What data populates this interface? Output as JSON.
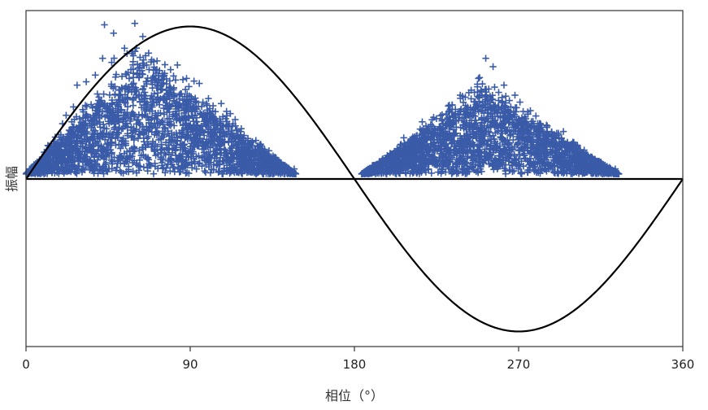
{
  "chart_data": {
    "type": "scatter",
    "title": "",
    "xlabel": "相位（°）",
    "ylabel": "振幅",
    "xlim": [
      0,
      360
    ],
    "ylim": [
      -1.0,
      1.0
    ],
    "x_ticks": [
      "0",
      "90",
      "180",
      "270",
      "360"
    ],
    "x_tick_values": [
      0,
      90,
      180,
      270,
      360
    ],
    "y_ticks_shown": false,
    "grid": false,
    "legend": "none",
    "reference_lines": [
      {
        "kind": "sine",
        "amplitude": 0.91,
        "period_deg": 360,
        "color": "#000000"
      },
      {
        "kind": "baseline",
        "y": 0,
        "color": "#000000"
      }
    ],
    "series": [
      {
        "marker": "+",
        "color": "#3a5ba8",
        "clusters": [
          {
            "x_range": [
              0,
              148
            ],
            "peak_x": 62,
            "peak_y": 0.75,
            "floor_y": 0.03
          },
          {
            "x_range": [
              184,
              325
            ],
            "peak_x": 250,
            "peak_y": 0.55,
            "floor_y": 0.03
          }
        ],
        "values": [
          {
            "x": 2,
            "y": 0.06
          },
          {
            "x": 6,
            "y": 0.1
          },
          {
            "x": 10,
            "y": 0.16
          },
          {
            "x": 12,
            "y": 0.2
          },
          {
            "x": 16,
            "y": 0.25
          },
          {
            "x": 20,
            "y": 0.33
          },
          {
            "x": 22,
            "y": 0.38
          },
          {
            "x": 26,
            "y": 0.43
          },
          {
            "x": 28,
            "y": 0.56
          },
          {
            "x": 33,
            "y": 0.58
          },
          {
            "x": 38,
            "y": 0.62
          },
          {
            "x": 42,
            "y": 0.72
          },
          {
            "x": 43,
            "y": 0.92
          },
          {
            "x": 48,
            "y": 0.87
          },
          {
            "x": 54,
            "y": 0.78
          },
          {
            "x": 58,
            "y": 0.75
          },
          {
            "x": 64,
            "y": 0.85
          },
          {
            "x": 70,
            "y": 0.7
          },
          {
            "x": 76,
            "y": 0.63
          },
          {
            "x": 83,
            "y": 0.68
          },
          {
            "x": 88,
            "y": 0.6
          },
          {
            "x": 95,
            "y": 0.57
          },
          {
            "x": 100,
            "y": 0.48
          },
          {
            "x": 107,
            "y": 0.45
          },
          {
            "x": 112,
            "y": 0.39
          },
          {
            "x": 118,
            "y": 0.3
          },
          {
            "x": 126,
            "y": 0.23
          },
          {
            "x": 132,
            "y": 0.15
          },
          {
            "x": 138,
            "y": 0.1
          },
          {
            "x": 142,
            "y": 0.08
          },
          {
            "x": 147,
            "y": 0.06
          },
          {
            "x": 185,
            "y": 0.04
          },
          {
            "x": 190,
            "y": 0.08
          },
          {
            "x": 198,
            "y": 0.14
          },
          {
            "x": 205,
            "y": 0.19
          },
          {
            "x": 212,
            "y": 0.25
          },
          {
            "x": 218,
            "y": 0.3
          },
          {
            "x": 225,
            "y": 0.36
          },
          {
            "x": 232,
            "y": 0.44
          },
          {
            "x": 238,
            "y": 0.5
          },
          {
            "x": 244,
            "y": 0.53
          },
          {
            "x": 248,
            "y": 0.6
          },
          {
            "x": 252,
            "y": 0.72
          },
          {
            "x": 256,
            "y": 0.67
          },
          {
            "x": 262,
            "y": 0.56
          },
          {
            "x": 268,
            "y": 0.5
          },
          {
            "x": 275,
            "y": 0.4
          },
          {
            "x": 282,
            "y": 0.33
          },
          {
            "x": 290,
            "y": 0.26
          },
          {
            "x": 297,
            "y": 0.2
          },
          {
            "x": 305,
            "y": 0.14
          },
          {
            "x": 312,
            "y": 0.1
          },
          {
            "x": 318,
            "y": 0.07
          },
          {
            "x": 323,
            "y": 0.06
          }
        ]
      }
    ]
  }
}
